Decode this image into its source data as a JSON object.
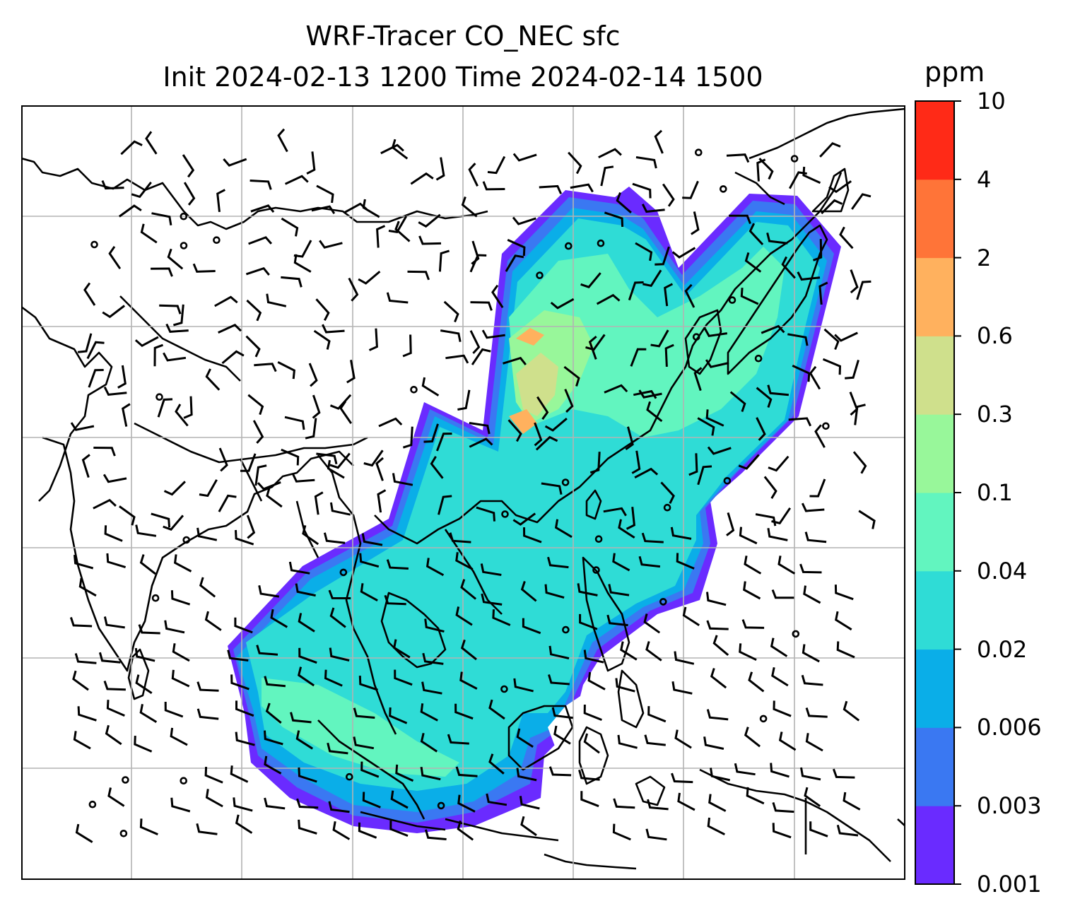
{
  "title": {
    "line1": "WRF-Tracer CO_NEC sfc",
    "line2": "Init 2024-02-13 1200 Time 2024-02-14 1500"
  },
  "colorbar": {
    "unit": "ppm",
    "ticks": [
      "10",
      "4",
      "2",
      "0.6",
      "0.3",
      "0.1",
      "0.04",
      "0.02",
      "0.006",
      "0.003",
      "0.001"
    ],
    "colors_bottom_to_top": [
      "#6a2bff",
      "#3a78f2",
      "#0aaee8",
      "#2fdcd6",
      "#62f5bf",
      "#98f79a",
      "#cfe08c",
      "#ffb15e",
      "#ff7438",
      "#ff2a17"
    ]
  },
  "map": {
    "gridlines": true,
    "grid_color": "#b3b3b3",
    "coastline_color": "#000000",
    "features": [
      "coastlines",
      "country-borders",
      "wind-barbs",
      "calm-wind-circles",
      "tracer-concentration-field"
    ]
  }
}
